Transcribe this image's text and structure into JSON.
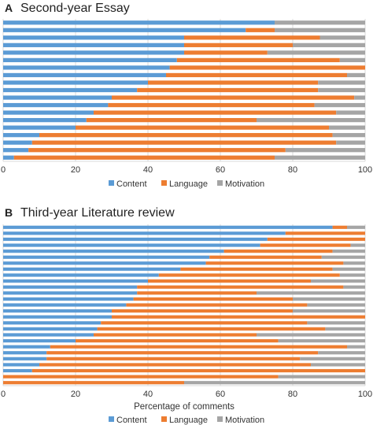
{
  "chart_data": [
    {
      "type": "bar",
      "orientation": "horizontal",
      "stacked": true,
      "panel_label": "A",
      "title": "Second-year Essay",
      "xlabel": "",
      "ylabel": "",
      "xlim": [
        0,
        100
      ],
      "xticks": [
        "0",
        "20",
        "40",
        "60",
        "80",
        "100"
      ],
      "grid": "vertical",
      "legend_position": "bottom",
      "colors": [
        "#5b9bd5",
        "#ed7d31",
        "#a5a5a5"
      ],
      "series": [
        {
          "name": "Content",
          "values": [
            75,
            67,
            50,
            50,
            50,
            48,
            46,
            45,
            40,
            37,
            30,
            29,
            25,
            23,
            20,
            10,
            8,
            7,
            3
          ]
        },
        {
          "name": "Language",
          "values": [
            0,
            8,
            37.5,
            30,
            23,
            45,
            54,
            50,
            47,
            50,
            67,
            57,
            67,
            47,
            70,
            81,
            84,
            71,
            72
          ]
        },
        {
          "name": "Motivation",
          "values": [
            25,
            25,
            12.5,
            20,
            27,
            7,
            0,
            5,
            13,
            13,
            3,
            14,
            8,
            30,
            10,
            9,
            8,
            22,
            25
          ]
        }
      ]
    },
    {
      "type": "bar",
      "orientation": "horizontal",
      "stacked": true,
      "panel_label": "B",
      "title": "Third-year Literature review",
      "xlabel": "Percentage of comments",
      "ylabel": "",
      "xlim": [
        0,
        100
      ],
      "xticks": [
        "0",
        "20",
        "40",
        "60",
        "80",
        "100"
      ],
      "grid": "vertical",
      "legend_position": "bottom",
      "colors": [
        "#5b9bd5",
        "#ed7d31",
        "#a5a5a5"
      ],
      "series": [
        {
          "name": "Content",
          "values": [
            91,
            78,
            73,
            71,
            61,
            57,
            56,
            49,
            43,
            40,
            37,
            37,
            36,
            34,
            30,
            30,
            27,
            26,
            25,
            20,
            13,
            12,
            12,
            10,
            8,
            0,
            0
          ]
        },
        {
          "name": "Language",
          "values": [
            4,
            22,
            27,
            25,
            30,
            31,
            38,
            42,
            50,
            45,
            57,
            33,
            44,
            50,
            50,
            70,
            57,
            63,
            45,
            56,
            82,
            75,
            70,
            75,
            92,
            76,
            50
          ]
        },
        {
          "name": "Motivation",
          "values": [
            5,
            0,
            0,
            4,
            9,
            12,
            6,
            9,
            7,
            15,
            6,
            30,
            20,
            16,
            20,
            0,
            16,
            11,
            30,
            24,
            5,
            13,
            18,
            15,
            0,
            24,
            50
          ]
        }
      ]
    }
  ]
}
